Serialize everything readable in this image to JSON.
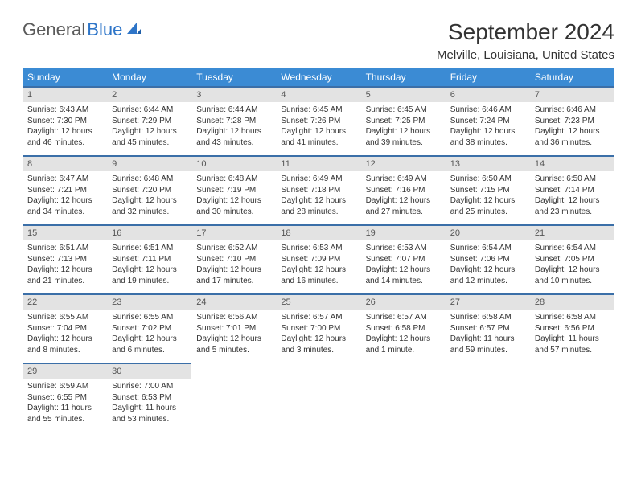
{
  "logo": {
    "text1": "General",
    "text2": "Blue"
  },
  "title": "September 2024",
  "location": "Melville, Louisiana, United States",
  "colors": {
    "header_bg": "#3b8bd4",
    "header_text": "#ffffff",
    "row_divider": "#3b6fa8",
    "daynum_bg": "#e3e3e3",
    "logo_gray": "#5a5a5a",
    "logo_blue": "#2e75c8",
    "body_text": "#333333",
    "page_bg": "#ffffff"
  },
  "weekdays": [
    "Sunday",
    "Monday",
    "Tuesday",
    "Wednesday",
    "Thursday",
    "Friday",
    "Saturday"
  ],
  "weeks": [
    [
      {
        "n": "1",
        "sr": "Sunrise: 6:43 AM",
        "ss": "Sunset: 7:30 PM",
        "dl1": "Daylight: 12 hours",
        "dl2": "and 46 minutes."
      },
      {
        "n": "2",
        "sr": "Sunrise: 6:44 AM",
        "ss": "Sunset: 7:29 PM",
        "dl1": "Daylight: 12 hours",
        "dl2": "and 45 minutes."
      },
      {
        "n": "3",
        "sr": "Sunrise: 6:44 AM",
        "ss": "Sunset: 7:28 PM",
        "dl1": "Daylight: 12 hours",
        "dl2": "and 43 minutes."
      },
      {
        "n": "4",
        "sr": "Sunrise: 6:45 AM",
        "ss": "Sunset: 7:26 PM",
        "dl1": "Daylight: 12 hours",
        "dl2": "and 41 minutes."
      },
      {
        "n": "5",
        "sr": "Sunrise: 6:45 AM",
        "ss": "Sunset: 7:25 PM",
        "dl1": "Daylight: 12 hours",
        "dl2": "and 39 minutes."
      },
      {
        "n": "6",
        "sr": "Sunrise: 6:46 AM",
        "ss": "Sunset: 7:24 PM",
        "dl1": "Daylight: 12 hours",
        "dl2": "and 38 minutes."
      },
      {
        "n": "7",
        "sr": "Sunrise: 6:46 AM",
        "ss": "Sunset: 7:23 PM",
        "dl1": "Daylight: 12 hours",
        "dl2": "and 36 minutes."
      }
    ],
    [
      {
        "n": "8",
        "sr": "Sunrise: 6:47 AM",
        "ss": "Sunset: 7:21 PM",
        "dl1": "Daylight: 12 hours",
        "dl2": "and 34 minutes."
      },
      {
        "n": "9",
        "sr": "Sunrise: 6:48 AM",
        "ss": "Sunset: 7:20 PM",
        "dl1": "Daylight: 12 hours",
        "dl2": "and 32 minutes."
      },
      {
        "n": "10",
        "sr": "Sunrise: 6:48 AM",
        "ss": "Sunset: 7:19 PM",
        "dl1": "Daylight: 12 hours",
        "dl2": "and 30 minutes."
      },
      {
        "n": "11",
        "sr": "Sunrise: 6:49 AM",
        "ss": "Sunset: 7:18 PM",
        "dl1": "Daylight: 12 hours",
        "dl2": "and 28 minutes."
      },
      {
        "n": "12",
        "sr": "Sunrise: 6:49 AM",
        "ss": "Sunset: 7:16 PM",
        "dl1": "Daylight: 12 hours",
        "dl2": "and 27 minutes."
      },
      {
        "n": "13",
        "sr": "Sunrise: 6:50 AM",
        "ss": "Sunset: 7:15 PM",
        "dl1": "Daylight: 12 hours",
        "dl2": "and 25 minutes."
      },
      {
        "n": "14",
        "sr": "Sunrise: 6:50 AM",
        "ss": "Sunset: 7:14 PM",
        "dl1": "Daylight: 12 hours",
        "dl2": "and 23 minutes."
      }
    ],
    [
      {
        "n": "15",
        "sr": "Sunrise: 6:51 AM",
        "ss": "Sunset: 7:13 PM",
        "dl1": "Daylight: 12 hours",
        "dl2": "and 21 minutes."
      },
      {
        "n": "16",
        "sr": "Sunrise: 6:51 AM",
        "ss": "Sunset: 7:11 PM",
        "dl1": "Daylight: 12 hours",
        "dl2": "and 19 minutes."
      },
      {
        "n": "17",
        "sr": "Sunrise: 6:52 AM",
        "ss": "Sunset: 7:10 PM",
        "dl1": "Daylight: 12 hours",
        "dl2": "and 17 minutes."
      },
      {
        "n": "18",
        "sr": "Sunrise: 6:53 AM",
        "ss": "Sunset: 7:09 PM",
        "dl1": "Daylight: 12 hours",
        "dl2": "and 16 minutes."
      },
      {
        "n": "19",
        "sr": "Sunrise: 6:53 AM",
        "ss": "Sunset: 7:07 PM",
        "dl1": "Daylight: 12 hours",
        "dl2": "and 14 minutes."
      },
      {
        "n": "20",
        "sr": "Sunrise: 6:54 AM",
        "ss": "Sunset: 7:06 PM",
        "dl1": "Daylight: 12 hours",
        "dl2": "and 12 minutes."
      },
      {
        "n": "21",
        "sr": "Sunrise: 6:54 AM",
        "ss": "Sunset: 7:05 PM",
        "dl1": "Daylight: 12 hours",
        "dl2": "and 10 minutes."
      }
    ],
    [
      {
        "n": "22",
        "sr": "Sunrise: 6:55 AM",
        "ss": "Sunset: 7:04 PM",
        "dl1": "Daylight: 12 hours",
        "dl2": "and 8 minutes."
      },
      {
        "n": "23",
        "sr": "Sunrise: 6:55 AM",
        "ss": "Sunset: 7:02 PM",
        "dl1": "Daylight: 12 hours",
        "dl2": "and 6 minutes."
      },
      {
        "n": "24",
        "sr": "Sunrise: 6:56 AM",
        "ss": "Sunset: 7:01 PM",
        "dl1": "Daylight: 12 hours",
        "dl2": "and 5 minutes."
      },
      {
        "n": "25",
        "sr": "Sunrise: 6:57 AM",
        "ss": "Sunset: 7:00 PM",
        "dl1": "Daylight: 12 hours",
        "dl2": "and 3 minutes."
      },
      {
        "n": "26",
        "sr": "Sunrise: 6:57 AM",
        "ss": "Sunset: 6:58 PM",
        "dl1": "Daylight: 12 hours",
        "dl2": "and 1 minute."
      },
      {
        "n": "27",
        "sr": "Sunrise: 6:58 AM",
        "ss": "Sunset: 6:57 PM",
        "dl1": "Daylight: 11 hours",
        "dl2": "and 59 minutes."
      },
      {
        "n": "28",
        "sr": "Sunrise: 6:58 AM",
        "ss": "Sunset: 6:56 PM",
        "dl1": "Daylight: 11 hours",
        "dl2": "and 57 minutes."
      }
    ],
    [
      {
        "n": "29",
        "sr": "Sunrise: 6:59 AM",
        "ss": "Sunset: 6:55 PM",
        "dl1": "Daylight: 11 hours",
        "dl2": "and 55 minutes."
      },
      {
        "n": "30",
        "sr": "Sunrise: 7:00 AM",
        "ss": "Sunset: 6:53 PM",
        "dl1": "Daylight: 11 hours",
        "dl2": "and 53 minutes."
      },
      null,
      null,
      null,
      null,
      null
    ]
  ]
}
